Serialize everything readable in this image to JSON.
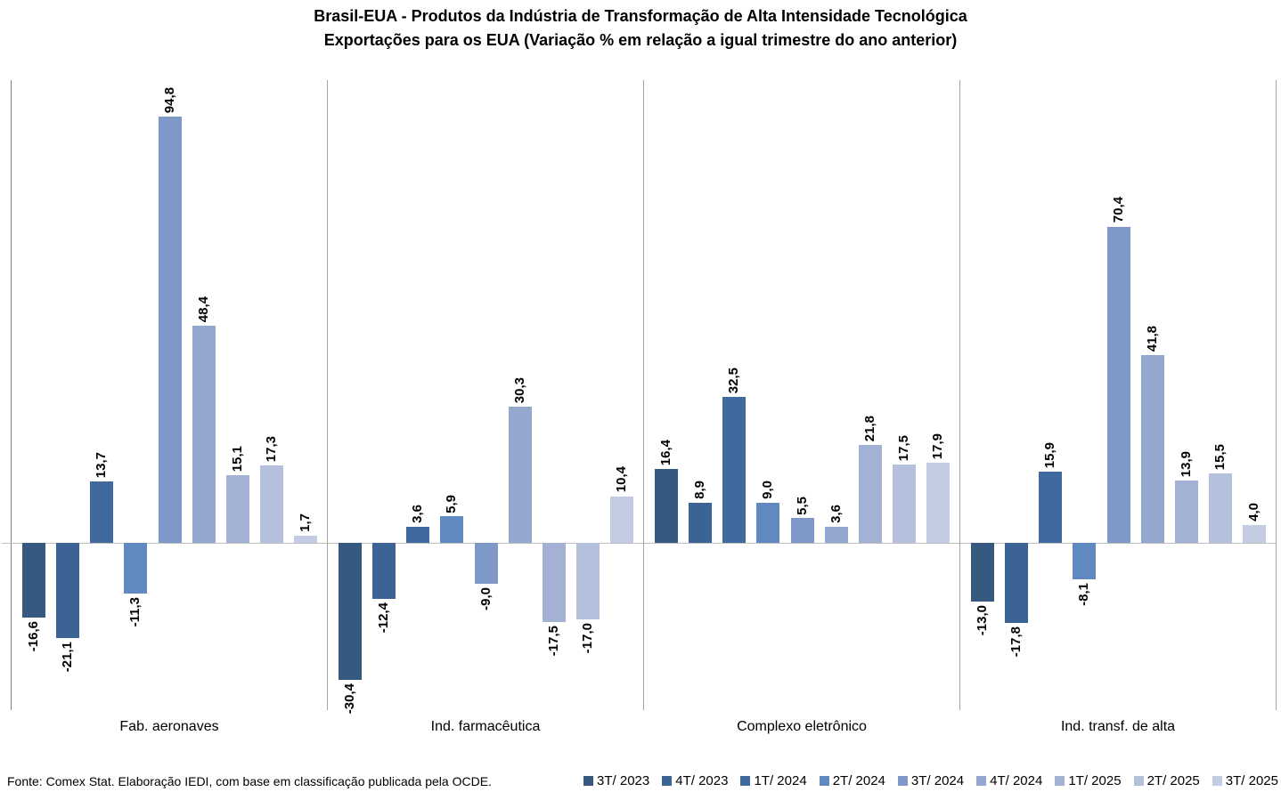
{
  "footer": {
    "source": "Fonte: Comex Stat. Elaboração IEDI, com base em classificação publicada pela OCDE."
  },
  "chart_data": {
    "type": "bar",
    "title": "Brasil-EUA - Produtos da Indústria de Transformação de Alta Intensidade Tecnológica",
    "subtitle": "Exportações para os EUA (Variação % em relação a igual trimestre do ano anterior)",
    "xlabel": "",
    "ylabel": "",
    "grid": false,
    "legend_position": "bottom-right",
    "value_label_format": "one-decimal-comma-rotated-90",
    "ylim": [
      -37.2,
      103.0
    ],
    "categories": [
      "Fab. aeronaves",
      "Ind. farmacêutica",
      "Complexo eletrônico",
      "Ind. transf. de alta"
    ],
    "series": [
      {
        "name": "3T/ 2023",
        "color": "#36597F",
        "values": [
          -16.6,
          -30.4,
          16.4,
          -13.0
        ]
      },
      {
        "name": "4T/ 2023",
        "color": "#3C6395",
        "values": [
          -21.1,
          -12.4,
          8.9,
          -17.8
        ]
      },
      {
        "name": "1T/ 2024",
        "color": "#40699D",
        "values": [
          13.7,
          3.6,
          32.5,
          15.9
        ]
      },
      {
        "name": "2T/ 2024",
        "color": "#6089C1",
        "values": [
          -11.3,
          5.9,
          9.0,
          -8.1
        ]
      },
      {
        "name": "3T/ 2024",
        "color": "#7E99C7",
        "values": [
          94.8,
          -9.0,
          5.5,
          70.4
        ]
      },
      {
        "name": "4T/ 2024",
        "color": "#94A8CF",
        "values": [
          48.4,
          30.3,
          3.6,
          41.8
        ]
      },
      {
        "name": "1T/ 2025",
        "color": "#A2B1D4",
        "values": [
          15.1,
          -17.5,
          21.8,
          13.9
        ]
      },
      {
        "name": "2T/ 2025",
        "color": "#B3BFDB",
        "values": [
          17.3,
          -17.0,
          17.5,
          15.5
        ]
      },
      {
        "name": "3T/ 2025",
        "color": "#C3CCE2",
        "values": [
          1.7,
          10.4,
          17.9,
          4.0
        ]
      }
    ],
    "axis_colors": {
      "left_axis": "#808080",
      "panel_separator": "#A6A6A6",
      "zero_line": "#BFBFBF"
    }
  }
}
